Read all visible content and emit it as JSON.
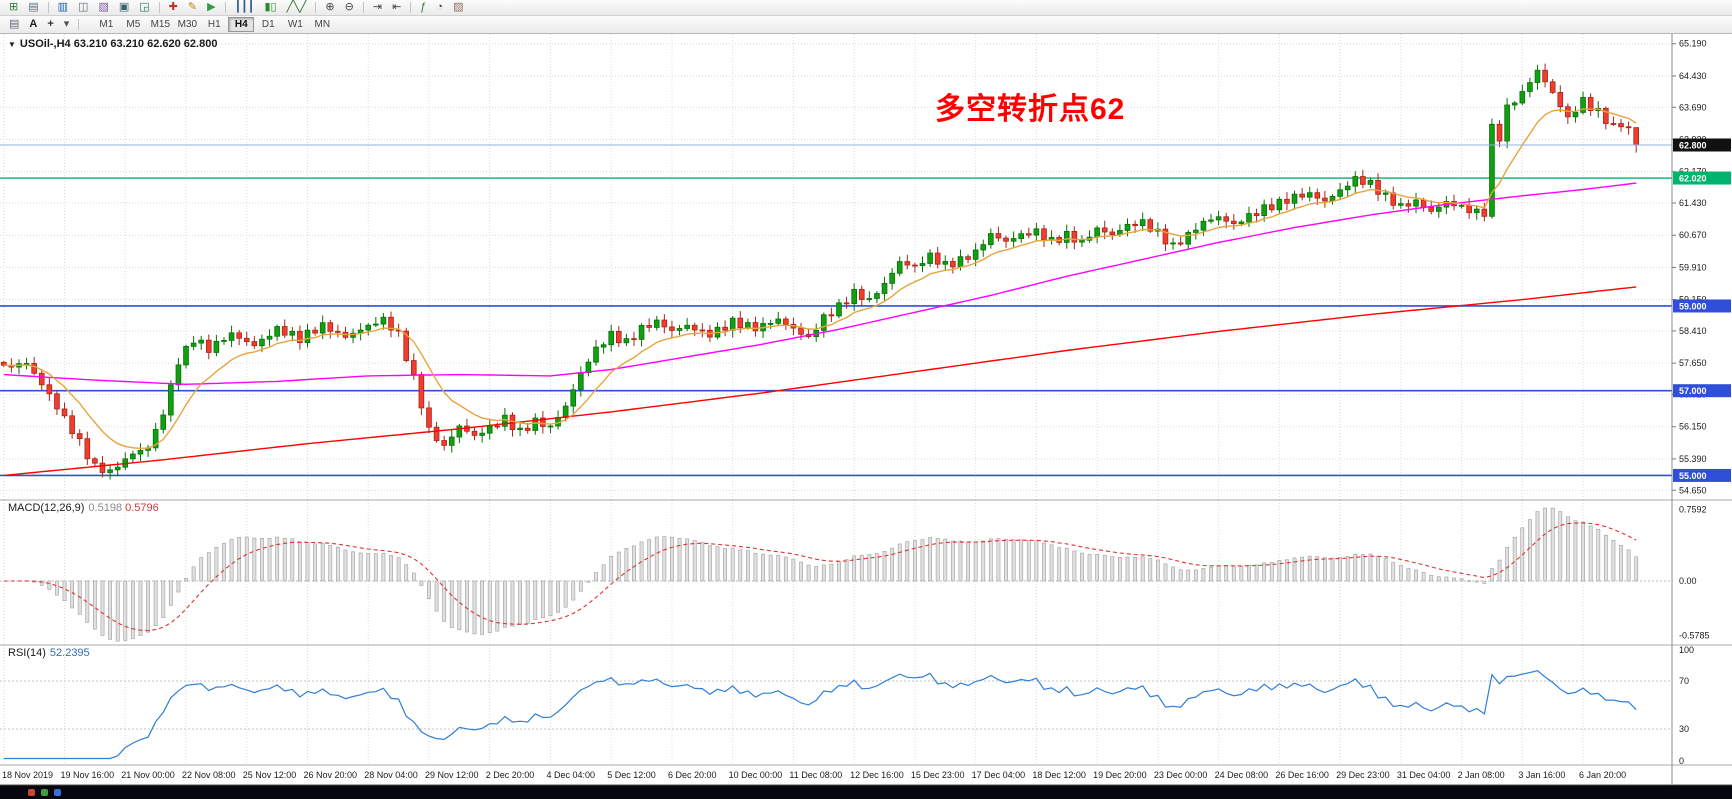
{
  "toolbar": {
    "row1_groups": [
      {
        "icons": [
          {
            "name": "new-chart-icon",
            "glyph": "⊞",
            "color": "#2f7d32"
          },
          {
            "name": "chart-profiles-icon",
            "glyph": "▤",
            "color": "#5d6d7e"
          }
        ]
      },
      {
        "icons": [
          {
            "name": "market-watch-icon",
            "glyph": "▥",
            "color": "#1a5fb4"
          },
          {
            "name": "data-window-icon",
            "glyph": "◫",
            "color": "#5d6d7e"
          },
          {
            "name": "navigator-icon",
            "glyph": "▧",
            "color": "#7d5ba6"
          },
          {
            "name": "terminal-icon",
            "glyph": "▣",
            "color": "#36626a"
          },
          {
            "name": "strategy-tester-icon",
            "glyph": "◲",
            "color": "#1b7a68"
          }
        ]
      },
      {
        "icons": [
          {
            "name": "new-order-icon",
            "glyph": "✚",
            "color": "#c0392b"
          },
          {
            "name": "metaeditor-icon",
            "glyph": "✎",
            "color": "#b58900"
          },
          {
            "name": "autotrading-icon",
            "glyph": "▶",
            "color": "#2e9e3f"
          }
        ]
      },
      {
        "icons": [
          {
            "name": "bar-chart-icon",
            "glyph": "┃┃┃",
            "color": "#355c8c"
          },
          {
            "name": "candlestick-chart-icon",
            "glyph": "▮▯",
            "color": "#2a8a2a"
          },
          {
            "name": "line-chart-icon",
            "glyph": "╱╲╱",
            "color": "#2a6a2a"
          }
        ]
      },
      {
        "icons": [
          {
            "name": "zoom-in-icon",
            "glyph": "⊕",
            "color": "#444444"
          },
          {
            "name": "zoom-out-icon",
            "glyph": "⊖",
            "color": "#444444"
          }
        ]
      },
      {
        "icons": [
          {
            "name": "auto-scroll-icon",
            "glyph": "⇥",
            "color": "#444444"
          },
          {
            "name": "chart-shift-icon",
            "glyph": "⇤",
            "color": "#444444"
          }
        ]
      },
      {
        "icons": [
          {
            "name": "indicators-icon",
            "glyph": "ƒ",
            "color": "#2e7d32"
          },
          {
            "name": "periods-icon",
            "glyph": "◔",
            "color": "#444444"
          },
          {
            "name": "templates-icon",
            "glyph": "▨",
            "color": "#8d6e63"
          }
        ]
      }
    ],
    "row2": {
      "icons": [
        {
          "name": "chart-list-icon",
          "glyph": "▤",
          "color": "#666677"
        },
        {
          "name": "text-label-tool-icon",
          "glyph": "A",
          "color": "#222222",
          "bold": true
        },
        {
          "name": "crosshair-tool-icon",
          "glyph": "+",
          "color": "#333333",
          "bold": true
        },
        {
          "name": "tool-dropdown-icon",
          "glyph": "▾",
          "color": "#555555"
        }
      ],
      "timeframes": [
        "M1",
        "M5",
        "M15",
        "M30",
        "H1",
        "H4",
        "D1",
        "W1",
        "MN"
      ],
      "active_timeframe": "H4"
    }
  },
  "chart": {
    "title": "USOil-,H4  63.210 63.210 62.620 62.800",
    "annotation": {
      "text": "多空转折点62",
      "color": "#ff0000"
    },
    "colors": {
      "up": "#10a010",
      "up_border": "#067006",
      "down": "#ef3e2e",
      "down_border": "#a82318",
      "ma_fast": "#e8a33d",
      "ma_mid": "#ff00ff",
      "ma_slow": "#ff0000",
      "grid": "#dadada",
      "hline_level": "#2f4fd8",
      "hline_key": "#00b46e",
      "hline_current": "#8fb2e0"
    },
    "price_axis_labels": [
      "65.190",
      "64.430",
      "63.690",
      "62.930",
      "62.170",
      "61.430",
      "60.670",
      "59.910",
      "59.150",
      "58.410",
      "57.650",
      "56.910",
      "56.150",
      "55.390",
      "54.650"
    ],
    "price_range": {
      "max": 65.42,
      "min": 54.42
    },
    "hlines": [
      {
        "price": 62.8,
        "label": "62.800",
        "type": "current"
      },
      {
        "price": 62.02,
        "label": "62.020",
        "type": "key"
      },
      {
        "price": 59.0,
        "label": "59.000",
        "type": "level"
      },
      {
        "price": 57.0,
        "label": "57.000",
        "type": "level"
      },
      {
        "price": 55.0,
        "label": "55.000",
        "type": "level"
      }
    ],
    "chart_data": {
      "type": "candlestick",
      "symbol": "USOil-",
      "timeframe": "H4",
      "bar_count": 216,
      "last_bar": {
        "open": 63.21,
        "high": 63.21,
        "low": 62.62,
        "close": 62.8
      },
      "close_keyframes": [
        [
          0,
          57.55
        ],
        [
          3,
          57.62
        ],
        [
          6,
          56.9
        ],
        [
          9,
          56.1
        ],
        [
          12,
          55.2
        ],
        [
          14,
          55.05
        ],
        [
          17,
          55.5
        ],
        [
          19,
          55.68
        ],
        [
          21,
          56.5
        ],
        [
          23,
          57.7
        ],
        [
          25,
          58.2
        ],
        [
          27,
          57.95
        ],
        [
          30,
          58.35
        ],
        [
          33,
          58.1
        ],
        [
          36,
          58.45
        ],
        [
          39,
          58.2
        ],
        [
          42,
          58.55
        ],
        [
          45,
          58.3
        ],
        [
          48,
          58.52
        ],
        [
          50,
          58.65
        ],
        [
          52,
          58.3
        ],
        [
          54,
          57.3
        ],
        [
          56,
          56.1
        ],
        [
          58,
          55.7
        ],
        [
          60,
          56.15
        ],
        [
          62,
          55.9
        ],
        [
          64,
          56.1
        ],
        [
          66,
          56.35
        ],
        [
          68,
          56.05
        ],
        [
          70,
          56.3
        ],
        [
          72,
          56.12
        ],
        [
          74,
          56.6
        ],
        [
          76,
          57.4
        ],
        [
          78,
          58.0
        ],
        [
          80,
          58.35
        ],
        [
          82,
          58.15
        ],
        [
          84,
          58.45
        ],
        [
          86,
          58.6
        ],
        [
          88,
          58.4
        ],
        [
          90,
          58.55
        ],
        [
          93,
          58.35
        ],
        [
          96,
          58.6
        ],
        [
          99,
          58.45
        ],
        [
          102,
          58.7
        ],
        [
          104,
          58.5
        ],
        [
          106,
          58.25
        ],
        [
          108,
          58.7
        ],
        [
          110,
          58.95
        ],
        [
          112,
          59.3
        ],
        [
          114,
          59.15
        ],
        [
          116,
          59.55
        ],
        [
          118,
          60.05
        ],
        [
          120,
          59.9
        ],
        [
          122,
          60.15
        ],
        [
          124,
          59.95
        ],
        [
          126,
          60.1
        ],
        [
          128,
          60.3
        ],
        [
          130,
          60.7
        ],
        [
          132,
          60.5
        ],
        [
          134,
          60.65
        ],
        [
          136,
          60.75
        ],
        [
          138,
          60.55
        ],
        [
          140,
          60.7
        ],
        [
          142,
          60.5
        ],
        [
          144,
          60.8
        ],
        [
          146,
          60.65
        ],
        [
          148,
          60.9
        ],
        [
          150,
          61.0
        ],
        [
          152,
          60.75
        ],
        [
          154,
          60.4
        ],
        [
          156,
          60.65
        ],
        [
          158,
          60.95
        ],
        [
          160,
          61.1
        ],
        [
          162,
          60.95
        ],
        [
          164,
          61.15
        ],
        [
          166,
          61.3
        ],
        [
          168,
          61.4
        ],
        [
          170,
          61.55
        ],
        [
          172,
          61.65
        ],
        [
          174,
          61.5
        ],
        [
          176,
          61.75
        ],
        [
          178,
          62.0
        ],
        [
          180,
          61.85
        ],
        [
          182,
          61.55
        ],
        [
          184,
          61.35
        ],
        [
          186,
          61.5
        ],
        [
          188,
          61.25
        ],
        [
          190,
          61.45
        ],
        [
          192,
          61.3
        ],
        [
          194,
          61.18
        ],
        [
          195,
          61.2
        ],
        [
          196,
          63.2
        ],
        [
          197,
          63.0
        ],
        [
          198,
          63.7
        ],
        [
          200,
          64.05
        ],
        [
          202,
          64.55
        ],
        [
          204,
          64.0
        ],
        [
          206,
          63.4
        ],
        [
          208,
          63.85
        ],
        [
          210,
          63.6
        ],
        [
          212,
          63.25
        ],
        [
          214,
          63.21
        ],
        [
          215,
          62.8
        ]
      ],
      "ma_fast": {
        "type": "ema",
        "period": 10
      },
      "ma_mid": {
        "type": "path",
        "points": [
          [
            0,
            57.38
          ],
          [
            12,
            57.25
          ],
          [
            24,
            57.15
          ],
          [
            36,
            57.22
          ],
          [
            48,
            57.35
          ],
          [
            60,
            57.38
          ],
          [
            72,
            57.35
          ],
          [
            80,
            57.5
          ],
          [
            90,
            57.8
          ],
          [
            100,
            58.1
          ],
          [
            110,
            58.45
          ],
          [
            120,
            58.85
          ],
          [
            130,
            59.25
          ],
          [
            140,
            59.7
          ],
          [
            150,
            60.1
          ],
          [
            160,
            60.5
          ],
          [
            170,
            60.85
          ],
          [
            180,
            61.15
          ],
          [
            190,
            61.4
          ],
          [
            200,
            61.6
          ],
          [
            208,
            61.75
          ],
          [
            215,
            61.9
          ]
        ]
      },
      "ma_slow": {
        "type": "path",
        "points": [
          [
            0,
            55.0
          ],
          [
            20,
            55.35
          ],
          [
            40,
            55.75
          ],
          [
            60,
            56.1
          ],
          [
            80,
            56.5
          ],
          [
            100,
            56.95
          ],
          [
            120,
            57.45
          ],
          [
            140,
            57.95
          ],
          [
            160,
            58.4
          ],
          [
            180,
            58.8
          ],
          [
            200,
            59.15
          ],
          [
            215,
            59.45
          ]
        ]
      }
    }
  },
  "macd": {
    "title": "MACD(12,26,9)",
    "value_main": "0.5198",
    "value_signal": "0.5796",
    "params": {
      "fast": 12,
      "slow": 26,
      "signal": 9
    },
    "axis_labels": [
      "0.7592",
      "0.00",
      "-0.5785"
    ],
    "range": {
      "max": 0.86,
      "min": -0.68
    }
  },
  "rsi": {
    "title": "RSI(14)",
    "value": "52.2395",
    "period": 14,
    "levels": [
      70,
      30
    ],
    "axis_labels": [
      "100",
      "70",
      "30",
      "0"
    ],
    "range": {
      "max": 100,
      "min": 0
    }
  },
  "time_axis": {
    "bars_per_label": 8,
    "labels": [
      "18 Nov 2019",
      "19 Nov 16:00",
      "21 Nov 00:00",
      "22 Nov 08:00",
      "25 Nov 12:00",
      "26 Nov 20:00",
      "28 Nov 04:00",
      "29 Nov 12:00",
      "2 Dec 20:00",
      "4 Dec 04:00",
      "5 Dec 12:00",
      "6 Dec 20:00",
      "10 Dec 00:00",
      "11 Dec 08:00",
      "12 Dec 16:00",
      "15 Dec 23:00",
      "17 Dec 04:00",
      "18 Dec 12:00",
      "19 Dec 20:00",
      "23 Dec 00:00",
      "24 Dec 08:00",
      "26 Dec 16:00",
      "29 Dec 23:00",
      "31 Dec 04:00",
      "2 Jan 08:00",
      "3 Jan 16:00",
      "6 Jan 20:00"
    ]
  },
  "status_bar": {
    "items": [
      {
        "name": "taskbar-item-red",
        "color": "#d04438"
      },
      {
        "name": "taskbar-item-green",
        "color": "#3f9d44"
      },
      {
        "name": "taskbar-item-blue",
        "color": "#3a6fd8"
      }
    ]
  }
}
